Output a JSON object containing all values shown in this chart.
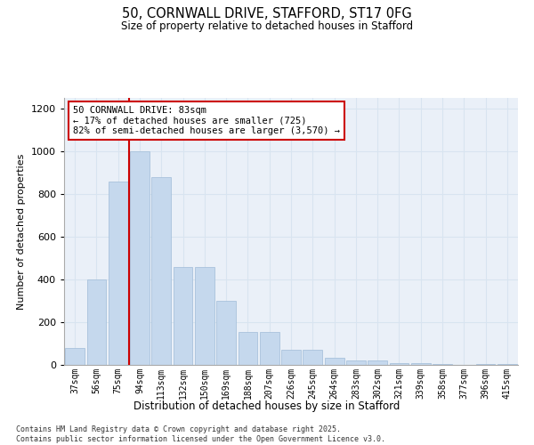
{
  "title_line1": "50, CORNWALL DRIVE, STAFFORD, ST17 0FG",
  "title_line2": "Size of property relative to detached houses in Stafford",
  "xlabel": "Distribution of detached houses by size in Stafford",
  "ylabel": "Number of detached properties",
  "categories": [
    "37sqm",
    "56sqm",
    "75sqm",
    "94sqm",
    "113sqm",
    "132sqm",
    "150sqm",
    "169sqm",
    "188sqm",
    "207sqm",
    "226sqm",
    "245sqm",
    "264sqm",
    "283sqm",
    "302sqm",
    "321sqm",
    "339sqm",
    "358sqm",
    "377sqm",
    "396sqm",
    "415sqm"
  ],
  "values": [
    80,
    400,
    860,
    1000,
    880,
    460,
    460,
    300,
    155,
    155,
    70,
    70,
    35,
    20,
    20,
    10,
    10,
    5,
    0,
    5,
    5
  ],
  "bar_color": "#c5d8ed",
  "bar_edge_color": "#a0bcd8",
  "grid_color": "#d8e4f0",
  "bg_color": "#eaf0f8",
  "annotation_box_color": "#cc0000",
  "vline_color": "#cc0000",
  "annotation_title": "50 CORNWALL DRIVE: 83sqm",
  "annotation_line1": "← 17% of detached houses are smaller (725)",
  "annotation_line2": "82% of semi-detached houses are larger (3,570) →",
  "ylim": [
    0,
    1250
  ],
  "yticks": [
    0,
    200,
    400,
    600,
    800,
    1000,
    1200
  ],
  "footer_line1": "Contains HM Land Registry data © Crown copyright and database right 2025.",
  "footer_line2": "Contains public sector information licensed under the Open Government Licence v3.0."
}
